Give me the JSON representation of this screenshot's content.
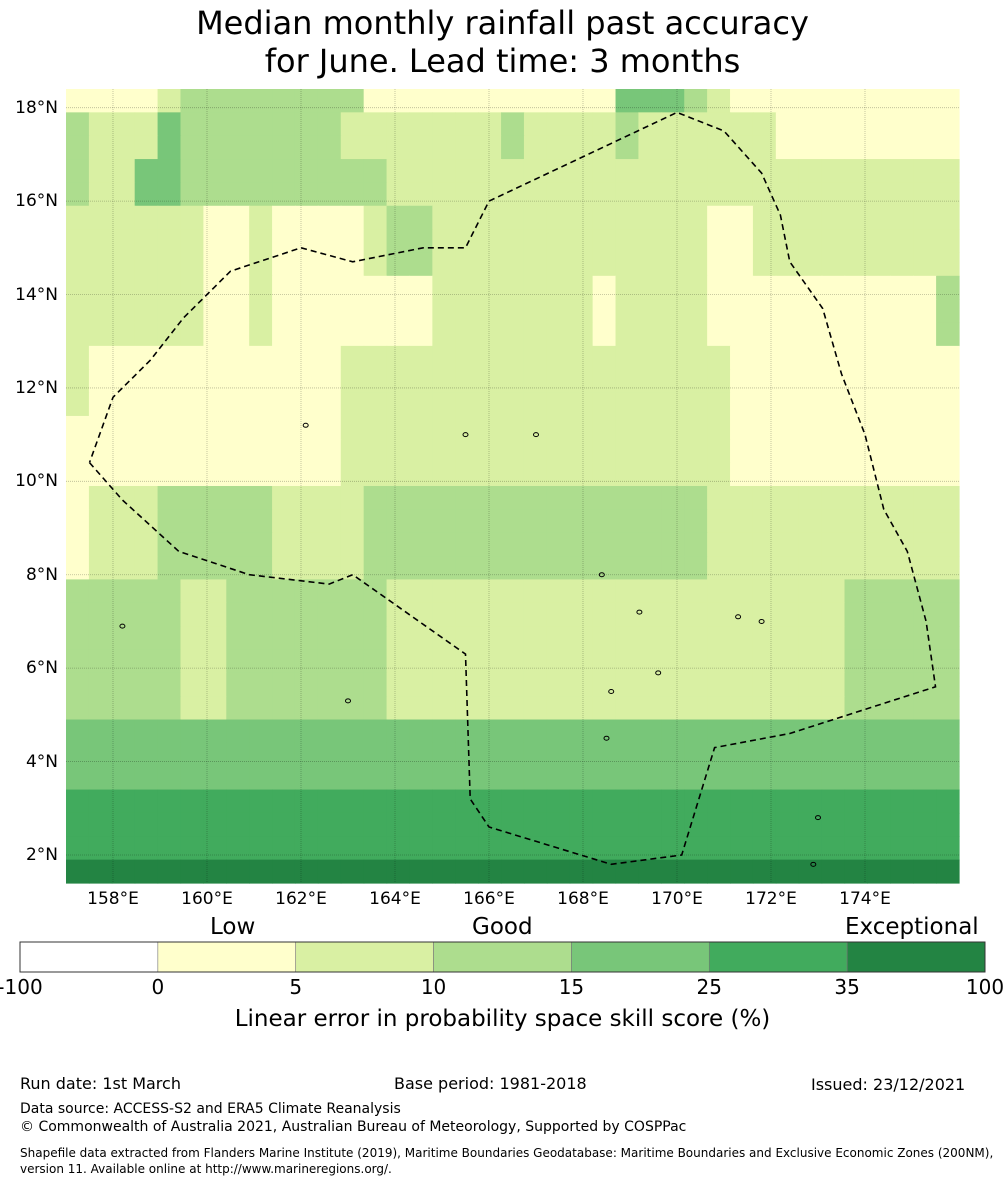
{
  "title": {
    "line1": "Median monthly rainfall past accuracy",
    "line2": "for June. Lead time: 3 months"
  },
  "map": {
    "lat_range": [
      1.4,
      18.4
    ],
    "lon_range": [
      157.0,
      176.0
    ],
    "cell_size_deg": 0.5,
    "lat_labels": [
      "18°N",
      "16°N",
      "14°N",
      "12°N",
      "10°N",
      "8°N",
      "6°N",
      "4°N",
      "2°N"
    ],
    "lat_values": [
      18,
      16,
      14,
      12,
      10,
      8,
      6,
      4,
      2
    ],
    "lon_labels": [
      "158°E",
      "160°E",
      "162°E",
      "164°E",
      "166°E",
      "168°E",
      "170°E",
      "172°E",
      "174°E"
    ],
    "lon_values": [
      158,
      160,
      162,
      164,
      166,
      168,
      170,
      172,
      174
    ],
    "grid_rows": [
      "000012222222200000000000333210000000000",
      "211132222222111111121111211111100000000",
      "211132222222111111121111211111100000000",
      "211332222222221111111111111111111111111",
      "211332222222221111111111111111111111111",
      "111111001000012211111111111100111111111",
      "111111001000012211111111111100111111111",
      "111111001000012211111111111100111111111",
      "111111001000000011111110111100000000002",
      "111111001000000011111110111100000000002",
      "111111001000000011111110111100000000002",
      "100000000000111111111111111110000000000",
      "100000000000111111111111111110000000000",
      "100000000000111111111111111110000000000",
      "000000000000111111111111111110000000000",
      "000000000000111111111111111110000000000",
      "000000000000111111111111111110000000000",
      "011122222111122222222222222211111111111",
      "011122222111122222222222222211111111111",
      "011122222111122222222222222211111111111",
      "011122222111122222222222222211111111111",
      "222221122222221111111111111111111122222",
      "222221122222221111111111111111111122222",
      "222221122222221111111111111111111122222",
      "222221122222221111111111111111111122222",
      "222221122222221111111111111111111122222",
      "222221122222221111111111111111111122222",
      "333333333333333333333333333333333333333",
      "333333333333333333333333333333333333333",
      "333333333333333333333333333333333333333",
      "444444444444444444444444444444444444444",
      "444444444444444444444444444444444444444",
      "444444444444444444444444444444444444444",
      "555555555555555555555555555555555555555"
    ],
    "eez_boundary": [
      [
        157.5,
        10.4
      ],
      [
        158.2,
        9.6
      ],
      [
        159.4,
        8.5
      ],
      [
        160.9,
        8.0
      ],
      [
        162.6,
        7.8
      ],
      [
        163.1,
        8.0
      ],
      [
        165.5,
        6.3
      ],
      [
        165.6,
        3.2
      ],
      [
        166.0,
        2.6
      ],
      [
        168.6,
        1.8
      ],
      [
        170.1,
        2.0
      ],
      [
        170.8,
        4.3
      ],
      [
        172.4,
        4.6
      ],
      [
        175.5,
        5.6
      ],
      [
        175.3,
        7.0
      ],
      [
        174.9,
        8.5
      ],
      [
        174.4,
        9.4
      ],
      [
        174.0,
        11.0
      ],
      [
        173.5,
        12.3
      ],
      [
        173.1,
        13.7
      ],
      [
        172.4,
        14.7
      ],
      [
        172.2,
        15.7
      ],
      [
        171.8,
        16.6
      ],
      [
        171.0,
        17.5
      ],
      [
        170.0,
        17.9
      ],
      [
        166.0,
        16.0
      ],
      [
        165.5,
        15.0
      ],
      [
        164.6,
        15.0
      ],
      [
        163.1,
        14.7
      ],
      [
        162.0,
        15.0
      ],
      [
        160.5,
        14.5
      ],
      [
        159.5,
        13.5
      ],
      [
        158.8,
        12.6
      ],
      [
        158.0,
        11.8
      ],
      [
        157.5,
        10.4
      ]
    ],
    "islands": [
      [
        158.2,
        6.9
      ],
      [
        162.1,
        11.2
      ],
      [
        165.5,
        11.0
      ],
      [
        167.0,
        11.0
      ],
      [
        168.4,
        8.0
      ],
      [
        169.2,
        7.2
      ],
      [
        171.3,
        7.1
      ],
      [
        171.8,
        7.0
      ],
      [
        169.6,
        5.9
      ],
      [
        168.6,
        5.5
      ],
      [
        168.5,
        4.5
      ],
      [
        173.0,
        2.8
      ],
      [
        172.9,
        1.8
      ],
      [
        163.0,
        5.3
      ]
    ]
  },
  "colorbar": {
    "category_low": "Low",
    "category_good": "Good",
    "category_exceptional": "Exceptional",
    "tick_labels": [
      "-100",
      "0",
      "5",
      "10",
      "15",
      "25",
      "35",
      "100"
    ],
    "colors": [
      "#ffffff",
      "#ffffcc",
      "#d9f0a3",
      "#addd8e",
      "#78c679",
      "#41ab5d",
      "#238443"
    ],
    "title": "Linear error in probability space skill score (%)"
  },
  "footer": {
    "run_date": "Run date: 1st March",
    "base_period": "Base period: 1981-2018",
    "issued": "Issued: 23/12/2021",
    "data_source": "Data source: ACCESS-S2 and ERA5 Climate Reanalysis",
    "copyright": "© Commonwealth of Australia 2021, Australian Bureau of Meteorology, Supported by COSPPac",
    "shapefile": "Shapefile data extracted from Flanders Marine Institute (2019), Maritime Boundaries Geodatabase: Maritime Boundaries and Exclusive Economic Zones (200NM), version 11. Available online at http://www.marineregions.org/."
  }
}
